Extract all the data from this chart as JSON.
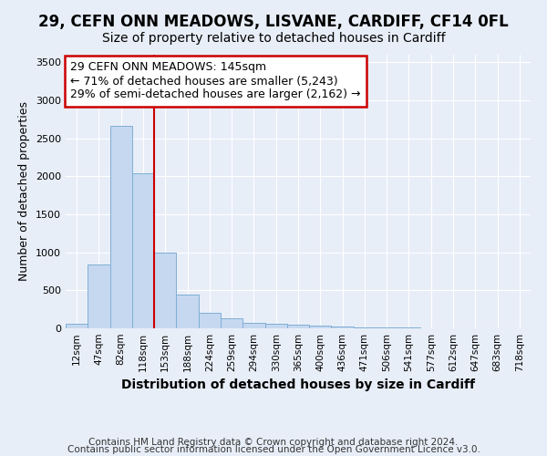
{
  "title1": "29, CEFN ONN MEADOWS, LISVANE, CARDIFF, CF14 0FL",
  "title2": "Size of property relative to detached houses in Cardiff",
  "xlabel": "Distribution of detached houses by size in Cardiff",
  "ylabel": "Number of detached properties",
  "footnote1": "Contains HM Land Registry data © Crown copyright and database right 2024.",
  "footnote2": "Contains public sector information licensed under the Open Government Licence v3.0.",
  "annotation_line1": "29 CEFN ONN MEADOWS: 145sqm",
  "annotation_line2": "← 71% of detached houses are smaller (5,243)",
  "annotation_line3": "29% of semi-detached houses are larger (2,162) →",
  "bar_categories": [
    "12sqm",
    "47sqm",
    "82sqm",
    "118sqm",
    "153sqm",
    "188sqm",
    "224sqm",
    "259sqm",
    "294sqm",
    "330sqm",
    "365sqm",
    "400sqm",
    "436sqm",
    "471sqm",
    "506sqm",
    "541sqm",
    "577sqm",
    "612sqm",
    "647sqm",
    "683sqm",
    "718sqm"
  ],
  "bar_values": [
    60,
    840,
    2670,
    2040,
    1000,
    445,
    205,
    135,
    75,
    55,
    45,
    40,
    25,
    15,
    10,
    8,
    5,
    4,
    3,
    2,
    2
  ],
  "bar_color": "#c5d8f0",
  "bar_edge_color": "#7fafd4",
  "vline_color": "#cc0000",
  "vline_x": 4,
  "ylim": [
    0,
    3600
  ],
  "yticks": [
    0,
    500,
    1000,
    1500,
    2000,
    2500,
    3000,
    3500
  ],
  "bg_color": "#e8eef8",
  "grid_color": "#ffffff",
  "title1_fontsize": 12,
  "title2_fontsize": 10,
  "annotation_fontsize": 9,
  "annotation_box_color": "#ffffff",
  "annotation_box_edge": "#cc0000",
  "ylabel_fontsize": 9,
  "xlabel_fontsize": 10,
  "footnote_fontsize": 7.5
}
